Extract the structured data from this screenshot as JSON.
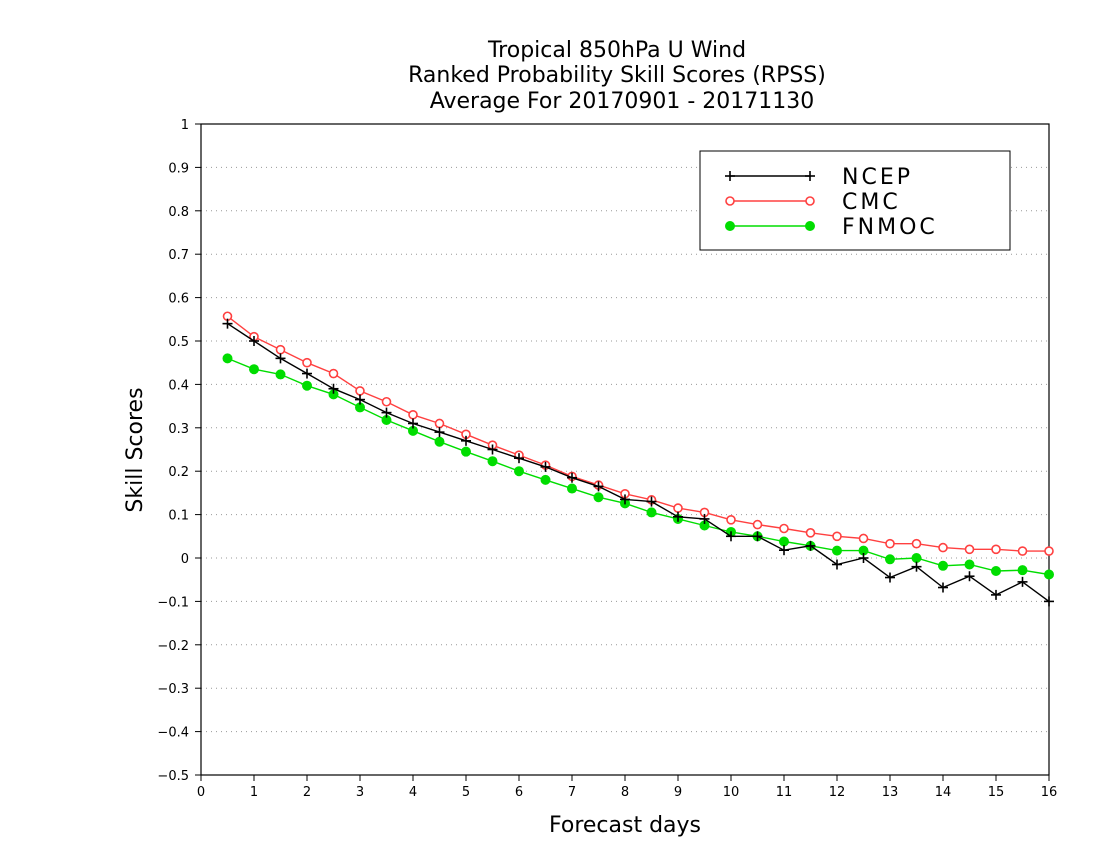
{
  "chart_data": {
    "type": "line",
    "title": [
      "Tropical 850hPa U Wind",
      "Ranked Probability Skill Scores (RPSS)",
      "Average For 20170901 - 20171130"
    ],
    "xlabel": "Forecast days",
    "ylabel": "Skill Scores",
    "xlim": [
      0,
      16
    ],
    "ylim": [
      -0.5,
      1
    ],
    "xticks": [
      "0",
      "1",
      "2",
      "3",
      "4",
      "5",
      "6",
      "7",
      "8",
      "9",
      "10",
      "11",
      "12",
      "13",
      "14",
      "15",
      "16"
    ],
    "yticks": [
      "−0.5",
      "−0.4",
      "−0.3",
      "−0.2",
      "−0.1",
      "0",
      "0.1",
      "0.2",
      "0.3",
      "0.4",
      "0.5",
      "0.6",
      "0.7",
      "0.8",
      "0.9",
      "1"
    ],
    "grid": true,
    "legend_position": "top-right",
    "x": [
      0.5,
      1,
      1.5,
      2,
      2.5,
      3,
      3.5,
      4,
      4.5,
      5,
      5.5,
      6,
      6.5,
      7,
      7.5,
      8,
      8.5,
      9,
      9.5,
      10,
      10.5,
      11,
      11.5,
      12,
      12.5,
      13,
      13.5,
      14,
      14.5,
      15,
      15.5,
      16
    ],
    "series": [
      {
        "name": "NCEP",
        "color": "#000000",
        "marker": "plus",
        "values": [
          0.54,
          0.5,
          0.46,
          0.425,
          0.39,
          0.365,
          0.335,
          0.31,
          0.29,
          0.27,
          0.25,
          0.23,
          0.21,
          0.185,
          0.165,
          0.135,
          0.13,
          0.095,
          0.09,
          0.05,
          0.05,
          0.018,
          0.028,
          -0.015,
          0.0,
          -0.045,
          -0.02,
          -0.068,
          -0.042,
          -0.085,
          -0.055,
          -0.1
        ]
      },
      {
        "name": "CMC",
        "color": "#ff4040",
        "marker": "open-circle",
        "values": [
          0.557,
          0.51,
          0.48,
          0.45,
          0.425,
          0.385,
          0.36,
          0.33,
          0.31,
          0.285,
          0.26,
          0.237,
          0.214,
          0.188,
          0.168,
          0.148,
          0.134,
          0.115,
          0.105,
          0.088,
          0.077,
          0.068,
          0.058,
          0.05,
          0.045,
          0.033,
          0.033,
          0.024,
          0.02,
          0.02,
          0.016,
          0.016
        ]
      },
      {
        "name": "FNMOC",
        "color": "#00dd00",
        "marker": "filled-circle",
        "values": [
          0.46,
          0.435,
          0.423,
          0.397,
          0.377,
          0.347,
          0.318,
          0.293,
          0.268,
          0.245,
          0.223,
          0.2,
          0.18,
          0.16,
          0.14,
          0.126,
          0.105,
          0.09,
          0.075,
          0.06,
          0.05,
          0.038,
          0.028,
          0.017,
          0.017,
          -0.003,
          0.0,
          -0.018,
          -0.015,
          -0.03,
          -0.028,
          -0.038
        ]
      }
    ]
  }
}
